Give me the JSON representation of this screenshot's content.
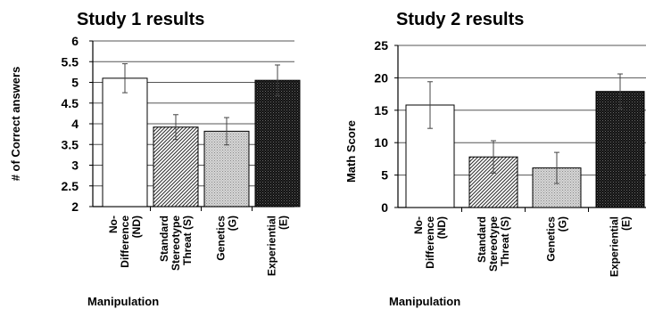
{
  "chart_data": [
    {
      "type": "bar",
      "title": "Study 1 results",
      "xlabel": "Manipulation",
      "ylabel": "# of Correct answers",
      "ylim": [
        2,
        6
      ],
      "yticks": [
        "2",
        "2.5",
        "3",
        "3.5",
        "4",
        "4.5",
        "5",
        "5.5",
        "6"
      ],
      "grid": true,
      "categories": [
        [
          "No-",
          "Difference",
          "(ND)"
        ],
        [
          "Standard",
          "Stereotype",
          "Threat (S)"
        ],
        [
          "Genetics",
          "(G)"
        ],
        [
          "Experiential",
          "(E)"
        ]
      ],
      "values": [
        5.1,
        3.92,
        3.82,
        5.05
      ],
      "errors": [
        0.35,
        0.3,
        0.33,
        0.37
      ],
      "fills": [
        "white",
        "diagonal-hatch",
        "light-dots",
        "dark-check"
      ]
    },
    {
      "type": "bar",
      "title": "Study 2 results",
      "xlabel": "Manipulation",
      "ylabel": "Math Score",
      "ylim": [
        0,
        25
      ],
      "yticks": [
        "0",
        "5",
        "10",
        "15",
        "20",
        "25"
      ],
      "grid": true,
      "categories": [
        [
          "No-",
          "Difference",
          "(ND)"
        ],
        [
          "Standard",
          "Stereotype",
          "Threat (S)"
        ],
        [
          "Genetics",
          "(G)"
        ],
        [
          "Experiential",
          "(E)"
        ]
      ],
      "values": [
        15.8,
        7.8,
        6.1,
        17.9
      ],
      "errors": [
        3.6,
        2.5,
        2.4,
        2.7
      ],
      "fills": [
        "white",
        "diagonal-hatch",
        "light-dots",
        "dark-check"
      ]
    }
  ]
}
